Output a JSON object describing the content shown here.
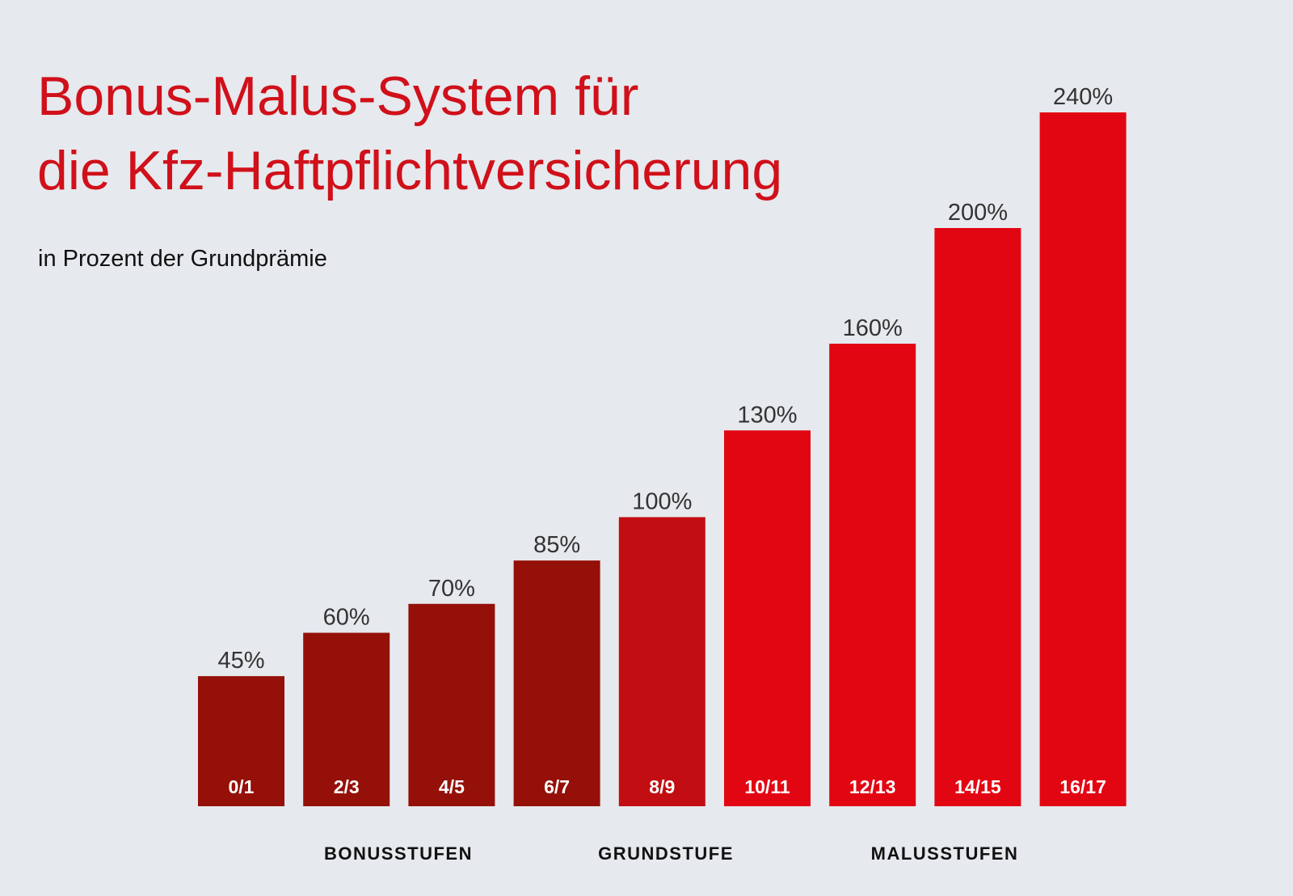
{
  "chart_data": {
    "type": "bar",
    "title": [
      "Bonus-Malus-System für",
      "die Kfz-Haftpflichtversicherung"
    ],
    "subtitle": "in Prozent der Grundprämie",
    "categories": [
      "0/1",
      "2/3",
      "4/5",
      "6/7",
      "8/9",
      "10/11",
      "12/13",
      "14/15",
      "16/17"
    ],
    "values": [
      45,
      60,
      70,
      85,
      100,
      130,
      160,
      200,
      240
    ],
    "value_labels": [
      "45%",
      "60%",
      "70%",
      "85%",
      "100%",
      "130%",
      "160%",
      "200%",
      "240%"
    ],
    "colors": [
      "#941009",
      "#941009",
      "#941009",
      "#941009",
      "#c20e12",
      "#e20613",
      "#e20613",
      "#e20613",
      "#e20613"
    ],
    "groups": [
      "BONUSSTUFEN",
      "GRUNDSTUFE",
      "MALUSSTUFEN"
    ]
  }
}
